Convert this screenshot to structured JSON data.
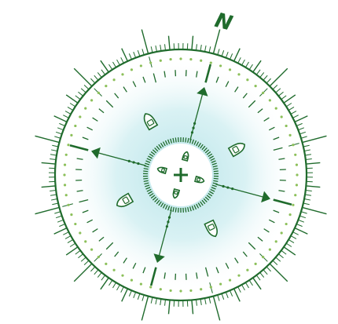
{
  "compass": {
    "north_label": "N",
    "heading_deg": 15
  },
  "colors": {
    "dark_green": "#1f6b2c",
    "dot_green": "#8cc05a",
    "glow_center": "#b4e2e8",
    "glow_edge": "#ffffff"
  },
  "boats": {
    "outer": [
      {
        "name": "boat-north",
        "bearing": -30,
        "heading": -30
      },
      {
        "name": "boat-east",
        "bearing": 65,
        "heading": 60
      },
      {
        "name": "boat-south",
        "bearing": 150,
        "heading": 155
      },
      {
        "name": "boat-west",
        "bearing": 245,
        "heading": 240
      }
    ],
    "inner": [
      {
        "name": "inner-boat-north",
        "bearing": 15,
        "heading": 15
      },
      {
        "name": "inner-boat-east",
        "bearing": 105,
        "heading": 105
      },
      {
        "name": "inner-boat-south",
        "bearing": 195,
        "heading": 195
      },
      {
        "name": "inner-boat-west",
        "bearing": 285,
        "heading": 285
      }
    ]
  }
}
